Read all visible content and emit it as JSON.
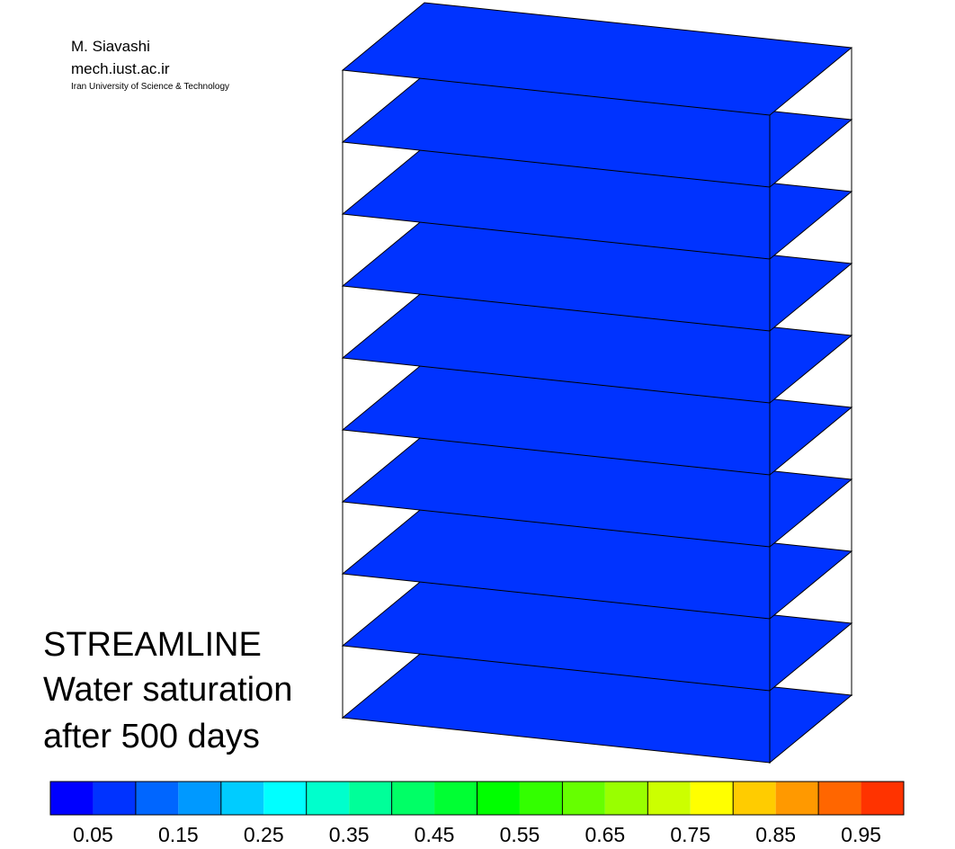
{
  "credits": {
    "author": "M. Siavashi",
    "site": "mech.iust.ac.ir",
    "organization": "Iran University of Science & Technology"
  },
  "caption": {
    "line1": "STREAMLINE",
    "line2": "Water saturation",
    "line3": "after 500 days"
  },
  "chart_data": {
    "type": "heatmap",
    "view": "3D stacked layers inside an outlined box",
    "layer_count": 10,
    "layer_values": [
      0.05,
      0.05,
      0.05,
      0.05,
      0.05,
      0.05,
      0.05,
      0.05,
      0.05,
      0.05
    ],
    "colorbar": {
      "levels": [
        0.0,
        0.05,
        0.1,
        0.15,
        0.2,
        0.25,
        0.3,
        0.35,
        0.4,
        0.45,
        0.5,
        0.55,
        0.6,
        0.65,
        0.7,
        0.75,
        0.8,
        0.85,
        0.9,
        0.95,
        1.0
      ],
      "colors": [
        "#0000ff",
        "#0033ff",
        "#0066ff",
        "#0099ff",
        "#00ccff",
        "#00ffff",
        "#00ffcc",
        "#00ff99",
        "#00ff66",
        "#00ff33",
        "#00ff00",
        "#33ff00",
        "#66ff00",
        "#99ff00",
        "#ccff00",
        "#ffff00",
        "#ffcc00",
        "#ff9900",
        "#ff6600",
        "#ff3300"
      ],
      "tick_labels": [
        "0.05",
        "0.15",
        "0.25",
        "0.35",
        "0.45",
        "0.55",
        "0.65",
        "0.75",
        "0.85",
        "0.95"
      ],
      "orientation": "horizontal",
      "placement": "bottom"
    }
  }
}
